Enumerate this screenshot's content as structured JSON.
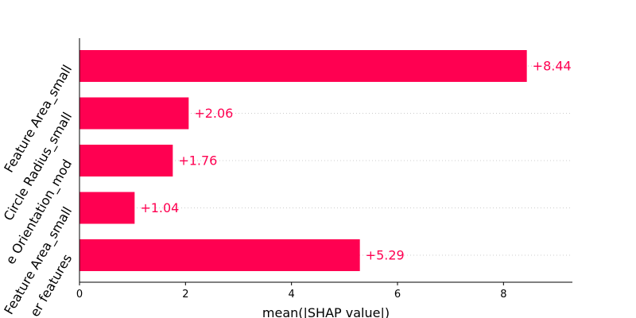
{
  "chart_data": {
    "type": "bar",
    "orientation": "horizontal",
    "categories": [
      "Feature Area_small",
      "Circle Radius_small",
      "e Orientation_mod",
      "Feature Area_small",
      "er features"
    ],
    "values": [
      8.44,
      2.06,
      1.76,
      1.04,
      5.29
    ],
    "value_labels": [
      "+8.44",
      "+2.06",
      "+1.76",
      "+1.04",
      "+5.29"
    ],
    "xlabel": "mean(|SHAP value|)",
    "ylabel": "",
    "title": "",
    "xlim": [
      0,
      9.3
    ],
    "xticks": [
      0,
      2,
      4,
      6,
      8
    ],
    "grid": "horizontal dotted guide per row",
    "legend": "none",
    "bar_color": "#ff0051"
  }
}
